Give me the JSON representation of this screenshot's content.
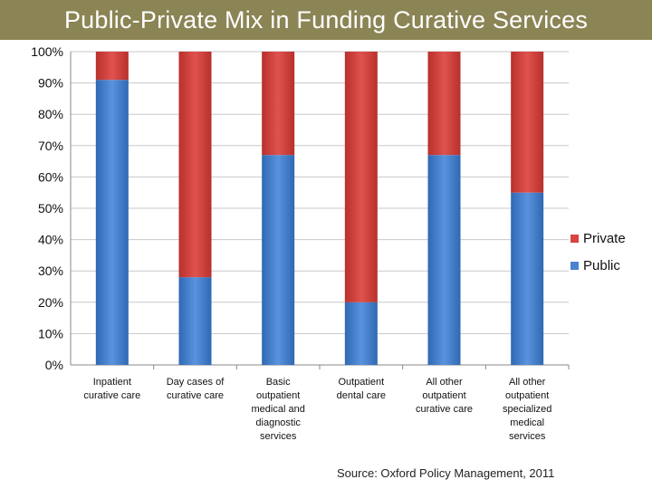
{
  "header": {
    "title": "Public-Private Mix in Funding Curative Services"
  },
  "footer": {
    "source": "Source: Oxford Policy Management, 2011"
  },
  "colors": {
    "public": "#4a83cf",
    "private": "#d64541",
    "title_bar": "#8b8455",
    "grid": "#c8c8c8"
  },
  "chart_data": {
    "type": "bar",
    "stacked": true,
    "normalized": true,
    "title": "",
    "xlabel": "",
    "ylabel": "",
    "ylim": [
      0,
      100
    ],
    "y_ticks": [
      "0%",
      "10%",
      "20%",
      "30%",
      "40%",
      "50%",
      "60%",
      "70%",
      "80%",
      "90%",
      "100%"
    ],
    "grid": true,
    "legend_position": "right",
    "categories": [
      [
        "Inpatient",
        "curative care"
      ],
      [
        "Day cases of",
        "curative care"
      ],
      [
        "Basic",
        "outpatient",
        "medical and",
        "diagnostic",
        "services"
      ],
      [
        "Outpatient",
        "dental care"
      ],
      [
        "All other",
        "outpatient",
        "curative care"
      ],
      [
        "All other",
        "outpatient",
        "specialized",
        "medical",
        "services"
      ]
    ],
    "series": [
      {
        "name": "Public",
        "color": "#4a83cf",
        "values": [
          91,
          28,
          67,
          20,
          67,
          55
        ]
      },
      {
        "name": "Private",
        "color": "#d64541",
        "values": [
          9,
          72,
          33,
          80,
          33,
          45
        ]
      }
    ],
    "legend": [
      "Private",
      "Public"
    ]
  }
}
